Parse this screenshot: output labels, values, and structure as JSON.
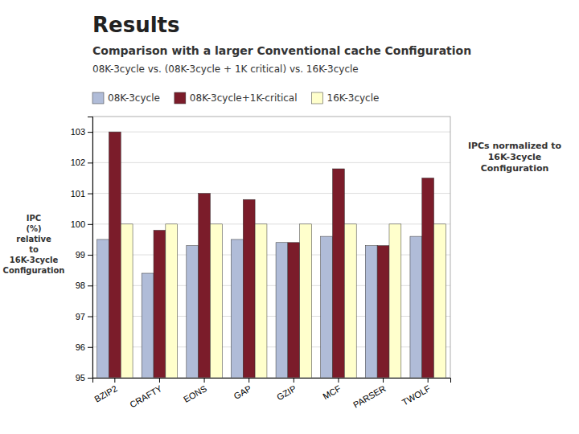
{
  "chart_data": {
    "type": "bar",
    "title": "Results",
    "subtitle": "Comparison with a larger Conventional cache Configuration",
    "annotations": [
      "08K-3cycle vs. (08K-3cycle + 1K critical) vs. 16K-3cycle",
      "IPCs normalized to\n16K-3cycle\nConfiguration"
    ],
    "ylabel": "IPC\n(%)\nrelative\nto\n16K-3cycle\nConfiguration",
    "categories": [
      "BZIP2",
      "CRAFTY",
      "EONS",
      "GAP",
      "GZIP",
      "MCF",
      "PARSER",
      "TWOLF"
    ],
    "series": [
      {
        "name": "08K-3cycle",
        "color": "#b0bcd8",
        "values": [
          99.5,
          98.4,
          99.3,
          99.5,
          99.4,
          99.6,
          99.3,
          99.6
        ]
      },
      {
        "name": "08K-3cycle+1K-critical",
        "color": "#7b1c2a",
        "values": [
          103.0,
          99.8,
          101.0,
          100.8,
          99.4,
          101.8,
          99.3,
          101.5
        ]
      },
      {
        "name": "16K-3cycle",
        "color": "#ffffcc",
        "values": [
          100.0,
          100.0,
          100.0,
          100.0,
          100.0,
          100.0,
          100.0,
          100.0
        ]
      }
    ],
    "ylim": [
      95,
      103.5
    ],
    "yticks": [
      95,
      96,
      97,
      98,
      99,
      100,
      101,
      102,
      103
    ],
    "grid": true,
    "legend": "top-left"
  }
}
